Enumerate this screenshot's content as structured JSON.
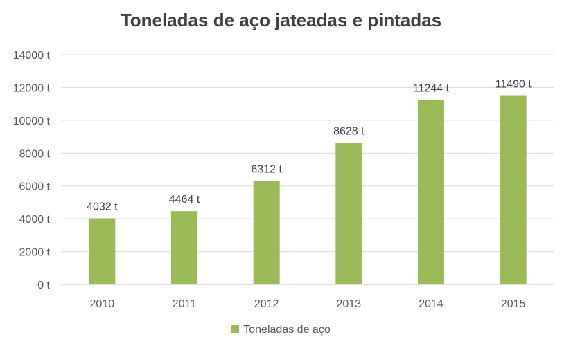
{
  "chart_data": {
    "type": "bar",
    "title": "Toneladas de aço jateadas e pintadas",
    "categories": [
      "2010",
      "2011",
      "2012",
      "2013",
      "2014",
      "2015"
    ],
    "series": [
      {
        "name": "Toneladas de aço",
        "values": [
          4032,
          4464,
          6312,
          8628,
          11244,
          11490
        ],
        "color": "#9bbb59"
      }
    ],
    "data_labels": [
      "4032 t",
      "4464 t",
      "6312 t",
      "8628 t",
      "11244 t",
      "11490 t"
    ],
    "y_ticks": [
      "0 t",
      "2000 t",
      "4000 t",
      "6000 t",
      "8000 t",
      "10000 t",
      "12000 t",
      "14000 t"
    ],
    "ylim": [
      0,
      14000
    ],
    "grid": true,
    "legend": "bottom"
  }
}
